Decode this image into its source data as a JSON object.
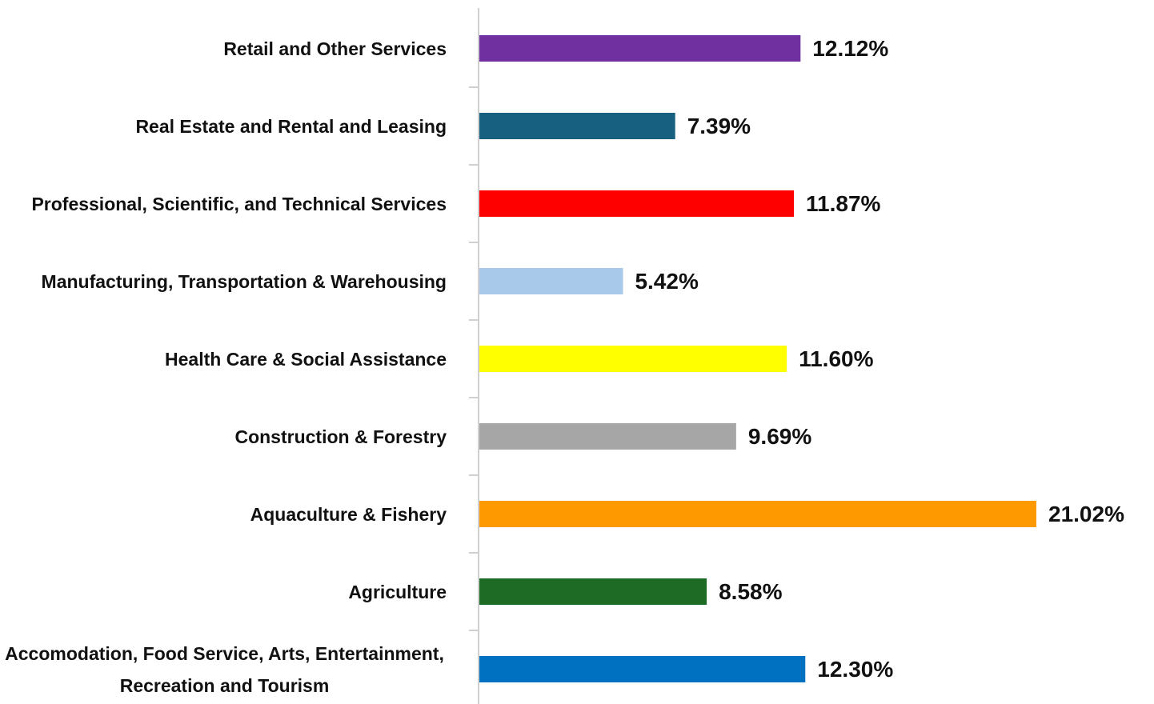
{
  "chart_data": {
    "type": "bar",
    "orientation": "horizontal",
    "categories": [
      "Retail and Other Services",
      "Real Estate and Rental and Leasing",
      "Professional, Scientific, and Technical Services",
      "Manufacturing, Transportation & Warehousing",
      "Health Care & Social Assistance",
      "Construction & Forestry",
      "Aquaculture & Fishery",
      "Agriculture",
      "Accomodation, Food Service, Arts, Entertainment, Recreation and Tourism"
    ],
    "values": [
      12.12,
      7.39,
      11.87,
      5.42,
      11.6,
      9.69,
      21.02,
      8.58,
      12.3
    ],
    "value_labels": [
      "12.12%",
      "7.39%",
      "11.87%",
      "5.42%",
      "11.60%",
      "9.69%",
      "21.02%",
      "8.58%",
      "12.30%"
    ],
    "colors": [
      "#7030a0",
      "#17607f",
      "#ff0000",
      "#a9c9ea",
      "#ffff00",
      "#a6a6a6",
      "#ff9900",
      "#1e6b26",
      "#0070c0"
    ]
  }
}
